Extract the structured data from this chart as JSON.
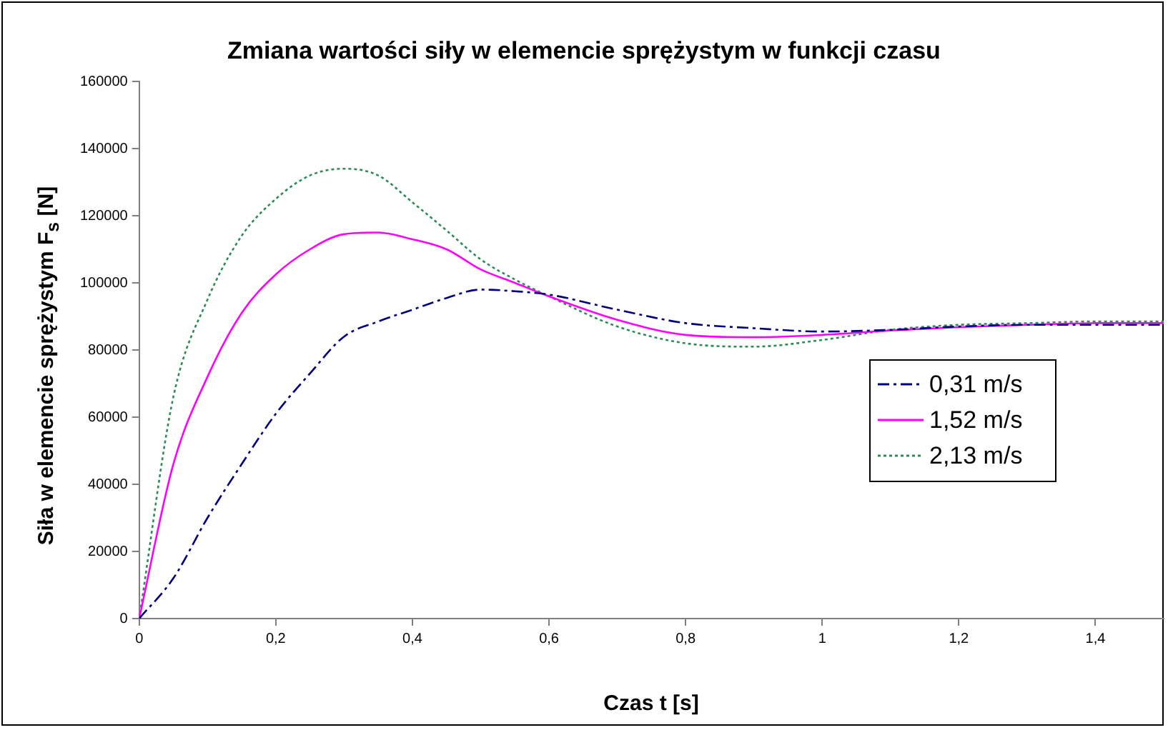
{
  "chart_data": {
    "type": "line",
    "title": "Zmiana wartości siły w elemencie sprężystym w funkcji czasu",
    "xlabel": "Czas t [s]",
    "ylabel": "Siła w elemencie sprężystym F$_{s}$ [N]",
    "x": [
      0,
      0.05,
      0.1,
      0.15,
      0.2,
      0.25,
      0.3,
      0.35,
      0.4,
      0.45,
      0.5,
      0.55,
      0.6,
      0.7,
      0.8,
      0.9,
      1,
      1.1,
      1.2,
      1.3,
      1.4,
      1.5
    ],
    "series": [
      {
        "name": "0,31 m/s",
        "color": "#000080",
        "line_style": "dashed",
        "values": [
          0,
          12000,
          30000,
          46000,
          61000,
          73000,
          84000,
          88500,
          92000,
          95500,
          98000,
          97500,
          96500,
          92000,
          88000,
          86500,
          85500,
          86000,
          87000,
          87500,
          87500,
          87500
        ]
      },
      {
        "name": "1,52 m/s",
        "color": "#ff00ff",
        "line_style": "solid",
        "values": [
          0,
          46000,
          72000,
          91000,
          102500,
          110000,
          114500,
          115000,
          113000,
          110000,
          104000,
          100000,
          96000,
          89000,
          84500,
          83800,
          84500,
          85800,
          86800,
          87500,
          88000,
          88000
        ]
      },
      {
        "name": "2,13 m/s",
        "color": "#2e8b57",
        "line_style": "dotted",
        "values": [
          0,
          66000,
          95000,
          114000,
          125000,
          132000,
          134000,
          132000,
          124000,
          115600,
          107000,
          101000,
          96000,
          87000,
          82000,
          81000,
          83000,
          86000,
          87500,
          88000,
          88500,
          88500
        ]
      }
    ],
    "xlim": [
      0,
      1.5
    ],
    "xticks": [
      0,
      {
        "value": 0.2,
        "label": "0,2"
      },
      {
        "value": 0.4,
        "label": "0,4"
      },
      {
        "value": 0.6,
        "label": "0,6"
      },
      {
        "value": 0.8,
        "label": "0,8"
      },
      1,
      {
        "value": 1.2,
        "label": "1,2"
      },
      {
        "value": 1.4,
        "label": "1,4"
      }
    ],
    "ylim": [
      0,
      160000
    ],
    "yticks": [
      0,
      20000,
      40000,
      60000,
      80000,
      100000,
      120000,
      140000,
      160000
    ],
    "grid": false,
    "legend": "right",
    "marker": "none"
  }
}
